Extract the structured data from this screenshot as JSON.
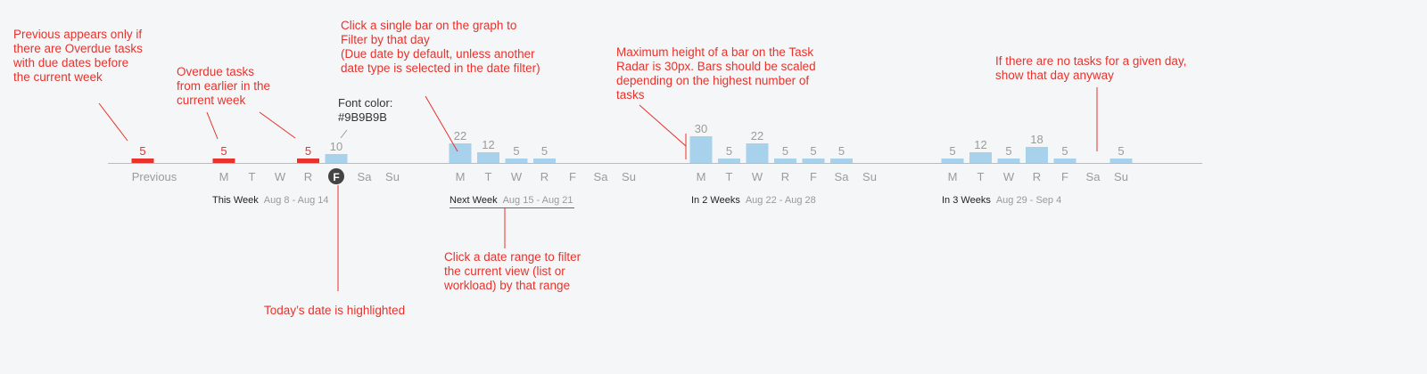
{
  "radar": {
    "previous_label": "Previous",
    "today_marker": "F",
    "colors": {
      "overdue": "#e8322b",
      "bar": "#a8d1ec",
      "count_label": "#9b9b9b",
      "overdue_count_label": "#e8322b",
      "today_circle": "#444444",
      "axis": "#bbbbbb",
      "annotation": "#e8322b",
      "day_label": "#9b9b9b"
    },
    "ranges": [
      {
        "name": "This Week",
        "dates": "Aug 8 - Aug 14"
      },
      {
        "name": "Next Week",
        "dates": "Aug 15 - Aug 21"
      },
      {
        "name": "In 2 Weeks",
        "dates": "Aug 22 - Aug 28"
      },
      {
        "name": "In 3 Weeks",
        "dates": "Aug 29 - Sep 4"
      }
    ]
  },
  "chart_data": {
    "type": "bar",
    "title": "",
    "ylim": [
      0,
      30
    ],
    "previous": {
      "label": "Previous",
      "value": 5,
      "overdue": true
    },
    "weeks": [
      {
        "label": "This Week",
        "range": "Aug 8 - Aug 14",
        "days": [
          {
            "day": "M",
            "value": 5,
            "overdue": true
          },
          {
            "day": "T",
            "value": null
          },
          {
            "day": "W",
            "value": null
          },
          {
            "day": "R",
            "value": 5,
            "overdue": true
          },
          {
            "day": "F",
            "value": 10,
            "today": true
          },
          {
            "day": "Sa",
            "value": null
          },
          {
            "day": "Su",
            "value": null
          }
        ]
      },
      {
        "label": "Next Week",
        "range": "Aug 15 - Aug 21",
        "days": [
          {
            "day": "M",
            "value": 22
          },
          {
            "day": "T",
            "value": 12
          },
          {
            "day": "W",
            "value": 5
          },
          {
            "day": "R",
            "value": 5
          },
          {
            "day": "F",
            "value": null
          },
          {
            "day": "Sa",
            "value": null
          },
          {
            "day": "Su",
            "value": null
          }
        ]
      },
      {
        "label": "In 2 Weeks",
        "range": "Aug 22 - Aug 28",
        "days": [
          {
            "day": "M",
            "value": 30
          },
          {
            "day": "T",
            "value": 5
          },
          {
            "day": "W",
            "value": 22
          },
          {
            "day": "R",
            "value": 5
          },
          {
            "day": "F",
            "value": 5
          },
          {
            "day": "Sa",
            "value": 5
          },
          {
            "day": "Su",
            "value": null
          }
        ]
      },
      {
        "label": "In 3 Weeks",
        "range": "Aug 29 - Sep 4",
        "days": [
          {
            "day": "M",
            "value": 5
          },
          {
            "day": "T",
            "value": 12
          },
          {
            "day": "W",
            "value": 5
          },
          {
            "day": "R",
            "value": 18
          },
          {
            "day": "F",
            "value": 5
          },
          {
            "day": "Sa",
            "value": null
          },
          {
            "day": "Su",
            "value": 5
          }
        ]
      }
    ]
  },
  "annotations": {
    "previous": "Previous appears only if\nthere are Overdue tasks\nwith due dates before\nthe current week",
    "overdue": "Overdue tasks\nfrom earlier in the\ncurrent week",
    "font_color": "Font color:\n#9B9B9B",
    "click_bar": "Click a single bar on the graph to\nFilter by that day\n(Due date by default, unless another\ndate type is selected in the date filter)",
    "max_height": "Maximum height of a bar on the Task\nRadar is 30px. Bars should be scaled\ndepending on the highest number of\ntasks",
    "no_tasks": "If there are no tasks for a given day,\nshow that day anyway",
    "date_range": "Click a date range to filter\nthe current view (list or\nworkload) by that range",
    "today": "Today’s date is highlighted"
  }
}
